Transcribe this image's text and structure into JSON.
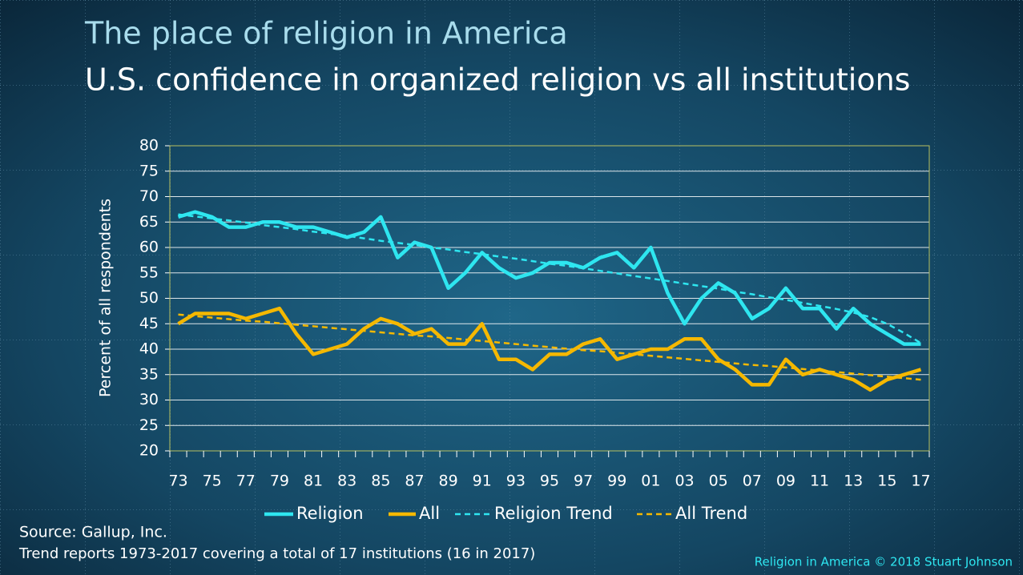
{
  "chart_data": {
    "type": "line",
    "title": "The place of religion in America",
    "subtitle": "U.S. confidence in organized religion vs all institutions",
    "ylabel": "Percent of all respondents",
    "source": "Source: Gallup, Inc.",
    "note": "Trend reports 1973-2017 covering a total of 17 institutions (16 in 2017)",
    "credit": "Religion in America © 2018 Stuart Johnson",
    "categories": [
      "73",
      null,
      "75",
      null,
      "77",
      null,
      "79",
      null,
      "81",
      null,
      "83",
      null,
      "85",
      null,
      "87",
      null,
      "89",
      null,
      "91",
      null,
      "93",
      null,
      "95",
      null,
      "97",
      null,
      "99",
      null,
      "01",
      null,
      "03",
      null,
      "05",
      null,
      "07",
      null,
      "09",
      null,
      "11",
      null,
      "13",
      null,
      "15",
      null,
      "17"
    ],
    "ylim": [
      20,
      80
    ],
    "yticks": [
      20,
      25,
      30,
      35,
      40,
      45,
      50,
      55,
      60,
      65,
      70,
      75,
      80
    ],
    "grid": true,
    "legend": "bottom",
    "series": [
      {
        "name": "Religion",
        "color": "#2ee6f0",
        "dashed": false,
        "values": [
          66,
          67,
          66,
          64,
          64,
          65,
          65,
          64,
          64,
          63,
          62,
          63,
          66,
          58,
          61,
          60,
          52,
          55,
          59,
          56,
          54,
          55,
          57,
          57,
          56,
          58,
          59,
          56,
          60,
          51,
          45,
          50,
          53,
          51,
          46,
          48,
          52,
          48,
          48,
          44,
          48,
          45,
          43,
          41,
          41
        ]
      },
      {
        "name": "All",
        "color": "#f5b800",
        "dashed": false,
        "values": [
          45,
          47,
          47,
          47,
          46,
          47,
          48,
          43,
          39,
          40,
          41,
          44,
          46,
          45,
          43,
          44,
          41,
          41,
          45,
          38,
          38,
          36,
          39,
          39,
          41,
          42,
          38,
          39,
          40,
          40,
          42,
          42,
          38,
          36,
          33,
          33,
          38,
          35,
          36,
          35,
          34,
          32,
          34,
          35,
          36
        ]
      },
      {
        "name": "Religion Trend",
        "color": "#2ee6f0",
        "dashed": true,
        "values": [
          66.5,
          66.1,
          65.7,
          65.3,
          64.9,
          64.4,
          64.0,
          63.6,
          63.1,
          62.7,
          62.3,
          61.8,
          61.3,
          60.9,
          60.5,
          60.0,
          59.6,
          59.1,
          58.7,
          58.2,
          57.8,
          57.3,
          56.8,
          56.4,
          55.9,
          55.4,
          54.9,
          54.4,
          53.9,
          53.4,
          52.9,
          52.4,
          51.9,
          51.3,
          50.8,
          50.2,
          49.7,
          49.1,
          48.5,
          47.9,
          47.2,
          46.3,
          45.0,
          43.2,
          41.2
        ]
      },
      {
        "name": "All Trend",
        "color": "#f5b800",
        "dashed": true,
        "values": [
          46.8,
          46.5,
          46.2,
          45.9,
          45.6,
          45.4,
          45.1,
          44.8,
          44.5,
          44.2,
          43.9,
          43.6,
          43.3,
          43.0,
          42.7,
          42.5,
          42.2,
          41.9,
          41.6,
          41.3,
          41.0,
          40.7,
          40.4,
          40.1,
          39.8,
          39.6,
          39.3,
          39.0,
          38.7,
          38.4,
          38.1,
          37.8,
          37.5,
          37.2,
          36.9,
          36.7,
          36.4,
          36.1,
          35.8,
          35.5,
          35.2,
          34.9,
          34.6,
          34.3,
          34.0
        ]
      }
    ]
  }
}
